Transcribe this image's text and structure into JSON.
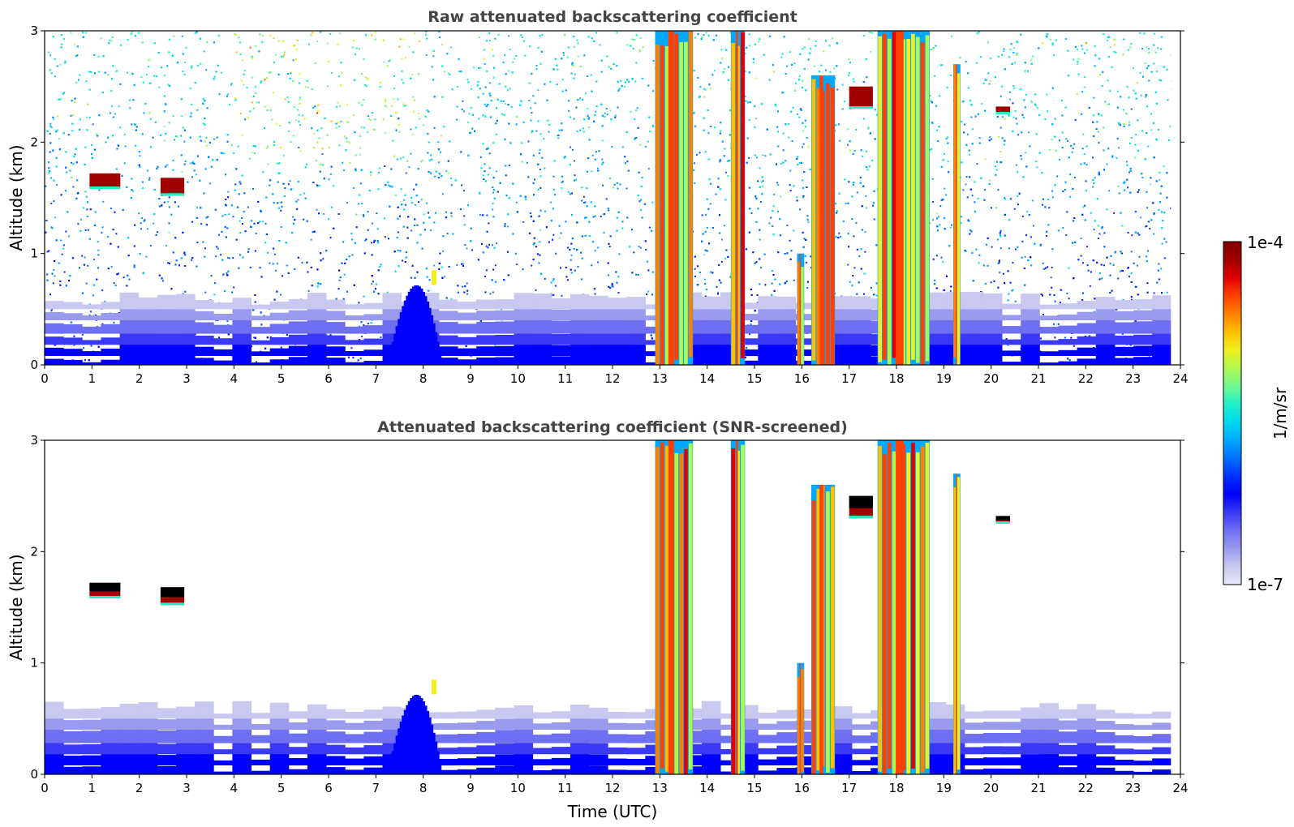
{
  "colors": {
    "colormap": [
      "#e8e8f8",
      "#c8c8f0",
      "#9a9aef",
      "#6f6ff2",
      "#3a3af6",
      "#0000ff",
      "#0030ff",
      "#0070ff",
      "#00a8ff",
      "#00d8ef",
      "#20f0c8",
      "#70f890",
      "#b0f850",
      "#f0f020",
      "#ffc000",
      "#ff8000",
      "#ff4000",
      "#e00000",
      "#a00000",
      "#800000"
    ],
    "masked_cloud_top": "#000000",
    "title_color": "#444444"
  },
  "colorbar": {
    "max_label": "1e-4",
    "min_label": "1e-7",
    "unit_label": "1/m/sr",
    "scale": "log"
  },
  "chart_data": [
    {
      "type": "heatmap",
      "title": "Raw attenuated backscattering coefficient",
      "xlabel": "",
      "ylabel": "Altitude (km)",
      "xlim": [
        0,
        24
      ],
      "ylim": [
        0,
        3
      ],
      "data_end_x": 23.8,
      "xticks": [
        "0",
        "1",
        "2",
        "3",
        "4",
        "5",
        "6",
        "7",
        "8",
        "9",
        "10",
        "11",
        "12",
        "13",
        "14",
        "15",
        "16",
        "17",
        "18",
        "19",
        "20",
        "21",
        "22",
        "23",
        "24"
      ],
      "yticks": [
        "0",
        "1",
        "2",
        "3"
      ],
      "noise": "high",
      "features": [
        {
          "kind": "boundary_layer",
          "x": [
            0,
            23.8
          ],
          "top_km": 0.6
        },
        {
          "kind": "aerosol_plume",
          "x": [
            7.2,
            8.5
          ],
          "top_km": 0.85
        },
        {
          "kind": "cloud_layer",
          "x": [
            0.95,
            1.6
          ],
          "base_km": 1.58,
          "top_km": 1.72
        },
        {
          "kind": "cloud_layer",
          "x": [
            2.45,
            2.95
          ],
          "base_km": 1.52,
          "top_km": 1.68
        },
        {
          "kind": "precip_shaft",
          "x": [
            12.9,
            13.7
          ],
          "top_km": 3.0
        },
        {
          "kind": "precip_shaft",
          "x": [
            14.5,
            14.8
          ],
          "top_km": 3.0
        },
        {
          "kind": "precip_shaft",
          "x": [
            15.9,
            16.05
          ],
          "top_km": 1.0
        },
        {
          "kind": "precip_shaft",
          "x": [
            16.2,
            16.7
          ],
          "top_km": 2.6
        },
        {
          "kind": "precip_shaft",
          "x": [
            17.6,
            18.7
          ],
          "top_km": 3.0
        },
        {
          "kind": "precip_shaft",
          "x": [
            19.2,
            19.35
          ],
          "top_km": 2.7
        },
        {
          "kind": "cloud_layer",
          "x": [
            17.0,
            17.5
          ],
          "base_km": 2.3,
          "top_km": 2.5
        },
        {
          "kind": "cloud_layer",
          "x": [
            20.1,
            20.4
          ],
          "base_km": 2.25,
          "top_km": 2.32
        }
      ]
    },
    {
      "type": "heatmap",
      "title": "Attenuated backscattering coefficient (SNR-screened)",
      "xlabel": "Time (UTC)",
      "ylabel": "Altitude (km)",
      "xlim": [
        0,
        24
      ],
      "ylim": [
        0,
        3
      ],
      "data_end_x": 23.8,
      "xticks": [
        "0",
        "1",
        "2",
        "3",
        "4",
        "5",
        "6",
        "7",
        "8",
        "9",
        "10",
        "11",
        "12",
        "13",
        "14",
        "15",
        "16",
        "17",
        "18",
        "19",
        "20",
        "21",
        "22",
        "23",
        "24"
      ],
      "yticks": [
        "0",
        "1",
        "2",
        "3"
      ],
      "noise": "screened",
      "features": [
        {
          "kind": "boundary_layer",
          "x": [
            0,
            23.8
          ],
          "top_km": 0.6
        },
        {
          "kind": "aerosol_plume",
          "x": [
            7.2,
            8.5
          ],
          "top_km": 0.85
        },
        {
          "kind": "cloud_layer",
          "x": [
            0.95,
            1.6
          ],
          "base_km": 1.58,
          "top_km": 1.72
        },
        {
          "kind": "cloud_layer",
          "x": [
            2.45,
            2.95
          ],
          "base_km": 1.52,
          "top_km": 1.68
        },
        {
          "kind": "precip_shaft",
          "x": [
            12.9,
            13.7
          ],
          "top_km": 3.0
        },
        {
          "kind": "precip_shaft",
          "x": [
            14.5,
            14.8
          ],
          "top_km": 3.0
        },
        {
          "kind": "precip_shaft",
          "x": [
            15.9,
            16.05
          ],
          "top_km": 1.0
        },
        {
          "kind": "precip_shaft",
          "x": [
            16.2,
            16.7
          ],
          "top_km": 2.6
        },
        {
          "kind": "precip_shaft",
          "x": [
            17.6,
            18.7
          ],
          "top_km": 3.0
        },
        {
          "kind": "precip_shaft",
          "x": [
            19.2,
            19.35
          ],
          "top_km": 2.7
        },
        {
          "kind": "cloud_layer",
          "x": [
            17.0,
            17.5
          ],
          "base_km": 2.3,
          "top_km": 2.5
        },
        {
          "kind": "cloud_layer",
          "x": [
            20.1,
            20.4
          ],
          "base_km": 2.25,
          "top_km": 2.32
        }
      ]
    }
  ]
}
